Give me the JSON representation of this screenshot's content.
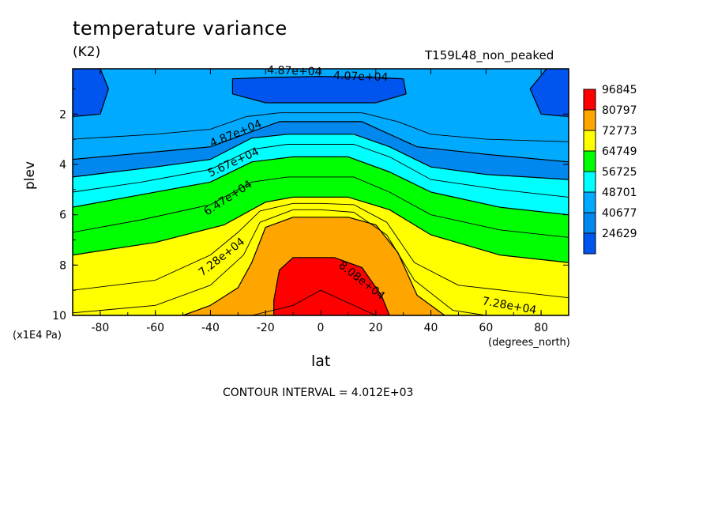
{
  "chart_data": {
    "type": "contour",
    "title": "temperature variance",
    "units": "(K2)",
    "dataset": "T159L48_non_peaked",
    "xlabel": "lat",
    "xunits": "(degrees_north)",
    "ylabel": "plev",
    "yunits": "(x1E4 Pa)",
    "contour_interval_text": "CONTOUR INTERVAL = 4.012E+03",
    "xlim": [
      -90,
      90
    ],
    "ylim": [
      10,
      0.2
    ],
    "x_ticks": [
      -80,
      -60,
      -40,
      -20,
      0,
      20,
      40,
      60,
      80
    ],
    "y_ticks": [
      2,
      4,
      6,
      8,
      10
    ],
    "legend_levels": [
      96845,
      80797,
      72773,
      64749,
      56725,
      48701,
      40677,
      24629
    ],
    "legend_colors": [
      "#ff0000",
      "#ffa500",
      "#ffff00",
      "#00ff00",
      "#00ffff",
      "#00aaff",
      "#0088ee",
      "#0055ee"
    ],
    "contour_labels": [
      "4.87e+04",
      "4.07e+04",
      "4.87e+04",
      "5.67e+04",
      "6.47e+04",
      "7.28e+04",
      "8.08e+04",
      "7.28e+04"
    ],
    "fill_bands": [
      {
        "color": "#00aaff",
        "boundary": [
          [
            -90,
            0.2
          ],
          [
            90,
            0.2
          ],
          [
            90,
            10
          ],
          [
            -90,
            10
          ]
        ]
      },
      {
        "color": "#0055ee",
        "boundary": [
          [
            -90,
            0.2
          ],
          [
            -80,
            0.2
          ],
          [
            -77,
            1
          ],
          [
            -80,
            2
          ],
          [
            -90,
            2.1
          ]
        ]
      },
      {
        "color": "#0055ee",
        "boundary": [
          [
            90,
            0.2
          ],
          [
            82,
            0.2
          ],
          [
            76,
            1
          ],
          [
            80,
            2
          ],
          [
            90,
            2.1
          ]
        ]
      },
      {
        "color": "#0055ee",
        "boundary": [
          [
            -32,
            0.6
          ],
          [
            -20,
            0.55
          ],
          [
            0,
            0.5
          ],
          [
            20,
            0.55
          ],
          [
            30,
            0.6
          ],
          [
            31,
            1.2
          ],
          [
            20,
            1.55
          ],
          [
            0,
            1.55
          ],
          [
            -20,
            1.55
          ],
          [
            -32,
            1.2
          ]
        ]
      },
      {
        "color": "#0088ee",
        "boundary": [
          [
            -90,
            3.8
          ],
          [
            -60,
            3.5
          ],
          [
            -40,
            3.3
          ],
          [
            -25,
            2.7
          ],
          [
            -15,
            2.3
          ],
          [
            0,
            2.3
          ],
          [
            15,
            2.3
          ],
          [
            25,
            2.8
          ],
          [
            35,
            3.3
          ],
          [
            60,
            3.6
          ],
          [
            90,
            3.9
          ],
          [
            90,
            10
          ],
          [
            -90,
            10
          ]
        ]
      },
      {
        "color": "#00ffff",
        "boundary": [
          [
            -90,
            4.5
          ],
          [
            -60,
            4.1
          ],
          [
            -40,
            3.8
          ],
          [
            -25,
            2.95
          ],
          [
            -12,
            2.8
          ],
          [
            0,
            2.8
          ],
          [
            12,
            2.8
          ],
          [
            25,
            3.3
          ],
          [
            40,
            4.1
          ],
          [
            60,
            4.4
          ],
          [
            90,
            4.6
          ],
          [
            90,
            10
          ],
          [
            -90,
            10
          ]
        ]
      },
      {
        "color": "#00ff00",
        "boundary": [
          [
            -90,
            5.7
          ],
          [
            -65,
            5.2
          ],
          [
            -40,
            4.7
          ],
          [
            -25,
            3.9
          ],
          [
            -10,
            3.7
          ],
          [
            0,
            3.7
          ],
          [
            10,
            3.7
          ],
          [
            25,
            4.3
          ],
          [
            40,
            5.1
          ],
          [
            65,
            5.7
          ],
          [
            90,
            6
          ],
          [
            90,
            10
          ],
          [
            -90,
            10
          ]
        ]
      },
      {
        "color": "#ffff00",
        "boundary": [
          [
            -90,
            7.6
          ],
          [
            -60,
            7.1
          ],
          [
            -35,
            6.4
          ],
          [
            -20,
            5.5
          ],
          [
            -10,
            5.3
          ],
          [
            0,
            5.3
          ],
          [
            10,
            5.3
          ],
          [
            25,
            5.8
          ],
          [
            40,
            6.8
          ],
          [
            65,
            7.6
          ],
          [
            90,
            7.9
          ],
          [
            90,
            10
          ],
          [
            -90,
            10
          ]
        ]
      },
      {
        "color": "#ffa500",
        "boundary": [
          [
            -50,
            10
          ],
          [
            -40,
            9.6
          ],
          [
            -30,
            8.9
          ],
          [
            -25,
            7.9
          ],
          [
            -20,
            6.5
          ],
          [
            -10,
            6.1
          ],
          [
            0,
            6.1
          ],
          [
            10,
            6.1
          ],
          [
            20,
            6.4
          ],
          [
            28,
            7.5
          ],
          [
            35,
            9.2
          ],
          [
            45,
            10
          ]
        ]
      },
      {
        "color": "#ff0000",
        "boundary": [
          [
            -17,
            10
          ],
          [
            -17,
            9.4
          ],
          [
            -15,
            8.2
          ],
          [
            -10,
            7.7
          ],
          [
            0,
            7.7
          ],
          [
            5,
            7.7
          ],
          [
            15,
            8.1
          ],
          [
            22,
            9.2
          ],
          [
            25,
            10
          ]
        ]
      }
    ],
    "contour_lines": [
      [
        [
          -90,
          9.9
        ],
        [
          -60,
          9.6
        ],
        [
          -40,
          8.8
        ],
        [
          -28,
          7.6
        ],
        [
          -22,
          6.3
        ],
        [
          -10,
          5.8
        ],
        [
          0,
          5.8
        ],
        [
          12,
          5.9
        ],
        [
          24,
          6.8
        ],
        [
          34,
          8.6
        ],
        [
          48,
          9.8
        ],
        [
          60,
          10
        ]
      ],
      [
        [
          -90,
          6.7
        ],
        [
          -65,
          6.2
        ],
        [
          -40,
          5.6
        ],
        [
          -25,
          4.7
        ],
        [
          -12,
          4.5
        ],
        [
          0,
          4.5
        ],
        [
          12,
          4.5
        ],
        [
          25,
          5.1
        ],
        [
          40,
          6
        ],
        [
          65,
          6.6
        ],
        [
          90,
          6.9
        ]
      ],
      [
        [
          -90,
          5.1
        ],
        [
          -65,
          4.7
        ],
        [
          -40,
          4.2
        ],
        [
          -25,
          3.4
        ],
        [
          -12,
          3.2
        ],
        [
          0,
          3.2
        ],
        [
          12,
          3.2
        ],
        [
          25,
          3.7
        ],
        [
          40,
          4.6
        ],
        [
          65,
          5
        ],
        [
          90,
          5.3
        ]
      ],
      [
        [
          -90,
          3
        ],
        [
          -60,
          2.8
        ],
        [
          -40,
          2.6
        ],
        [
          -27,
          2.1
        ],
        [
          -15,
          1.95
        ],
        [
          0,
          1.95
        ],
        [
          15,
          1.95
        ],
        [
          28,
          2.3
        ],
        [
          40,
          2.8
        ],
        [
          60,
          3
        ],
        [
          90,
          3.1
        ]
      ],
      [
        [
          -90,
          9
        ],
        [
          -60,
          8.6
        ],
        [
          -40,
          7.6
        ],
        [
          -30,
          6.7
        ],
        [
          -22,
          5.85
        ],
        [
          -10,
          5.55
        ],
        [
          0,
          5.55
        ],
        [
          12,
          5.6
        ],
        [
          24,
          6.3
        ],
        [
          34,
          7.9
        ],
        [
          50,
          8.8
        ],
        [
          90,
          9.3
        ]
      ],
      [
        [
          -25,
          10
        ],
        [
          -10,
          9.6
        ],
        [
          0,
          9.0
        ],
        [
          8,
          9.4
        ],
        [
          20,
          10
        ]
      ]
    ]
  }
}
